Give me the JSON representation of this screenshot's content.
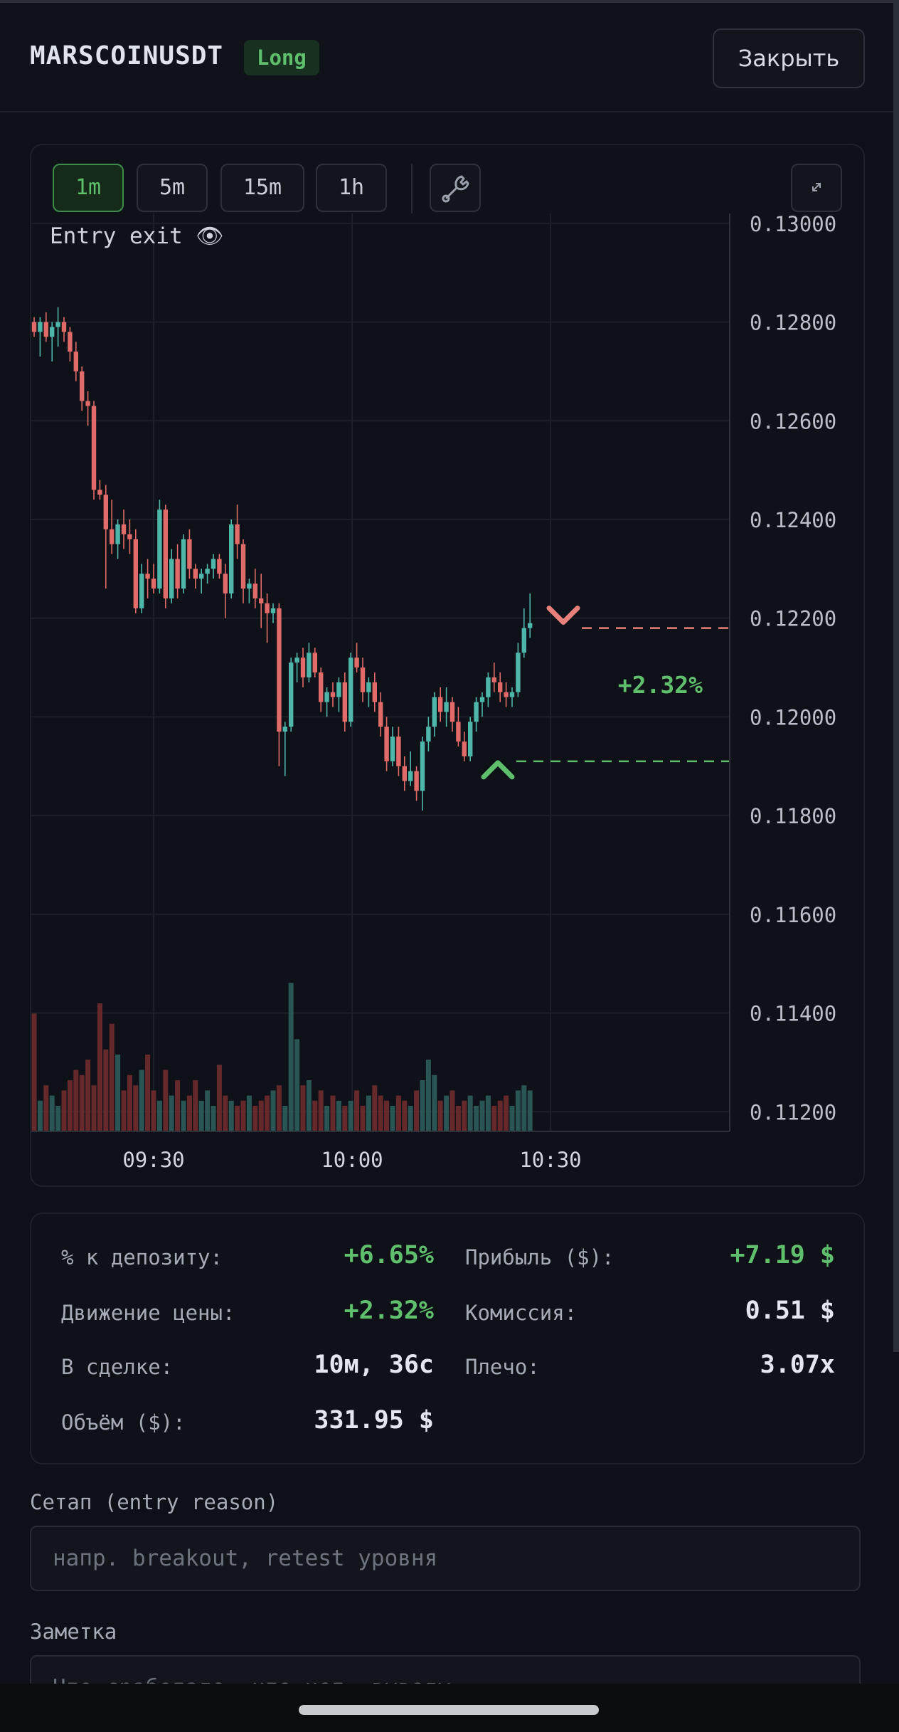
{
  "header": {
    "symbol": "MARSCOINUSDT",
    "side": "Long",
    "close_label": "Закрыть"
  },
  "chart": {
    "timeframes": [
      "1m",
      "5m",
      "15m",
      "1h"
    ],
    "active_timeframe": "1m",
    "legend_text": "Entry exit 👁",
    "tool_icon": "wrench-icon",
    "expand_icon": "expand-icon"
  },
  "chart_data": {
    "type": "candlestick",
    "ylim": [
      0.1116,
      0.1302
    ],
    "y_ticks": [
      "0.13000",
      "0.12800",
      "0.12600",
      "0.12400",
      "0.12200",
      "0.12000",
      "0.11800",
      "0.11600",
      "0.11400",
      "0.11200"
    ],
    "x_ticks": [
      "09:30",
      "10:00",
      "10:30"
    ],
    "entry_price": 0.1191,
    "exit_price": 0.1218,
    "pnl_label": "+2.32%",
    "colors": {
      "up": "#4fb6aa",
      "down": "#e06b68",
      "entry": "#5fbf6d",
      "exit": "#e8807c"
    },
    "candles": [
      {
        "o": 0.128,
        "h": 0.1281,
        "l": 0.1277,
        "c": 0.1278
      },
      {
        "o": 0.1278,
        "h": 0.1281,
        "l": 0.1273,
        "c": 0.128
      },
      {
        "o": 0.128,
        "h": 0.1282,
        "l": 0.1276,
        "c": 0.1277
      },
      {
        "o": 0.1277,
        "h": 0.128,
        "l": 0.1272,
        "c": 0.1279
      },
      {
        "o": 0.1279,
        "h": 0.1283,
        "l": 0.1275,
        "c": 0.128
      },
      {
        "o": 0.128,
        "h": 0.1281,
        "l": 0.1276,
        "c": 0.1278
      },
      {
        "o": 0.1278,
        "h": 0.1279,
        "l": 0.1272,
        "c": 0.1274
      },
      {
        "o": 0.1274,
        "h": 0.1276,
        "l": 0.1268,
        "c": 0.127
      },
      {
        "o": 0.127,
        "h": 0.1271,
        "l": 0.1262,
        "c": 0.1264
      },
      {
        "o": 0.1264,
        "h": 0.1266,
        "l": 0.1259,
        "c": 0.1263
      },
      {
        "o": 0.1263,
        "h": 0.1264,
        "l": 0.1244,
        "c": 0.1246
      },
      {
        "o": 0.1246,
        "h": 0.1248,
        "l": 0.1244,
        "c": 0.1245
      },
      {
        "o": 0.1245,
        "h": 0.1247,
        "l": 0.1226,
        "c": 0.1238
      },
      {
        "o": 0.1238,
        "h": 0.1244,
        "l": 0.1233,
        "c": 0.1235
      },
      {
        "o": 0.1235,
        "h": 0.124,
        "l": 0.1232,
        "c": 0.1239
      },
      {
        "o": 0.1239,
        "h": 0.1242,
        "l": 0.1234,
        "c": 0.1237
      },
      {
        "o": 0.1237,
        "h": 0.124,
        "l": 0.1233,
        "c": 0.1236
      },
      {
        "o": 0.1236,
        "h": 0.1238,
        "l": 0.1221,
        "c": 0.1222
      },
      {
        "o": 0.1222,
        "h": 0.1231,
        "l": 0.1221,
        "c": 0.1229
      },
      {
        "o": 0.1229,
        "h": 0.1232,
        "l": 0.1224,
        "c": 0.1228
      },
      {
        "o": 0.1228,
        "h": 0.1231,
        "l": 0.1225,
        "c": 0.1226
      },
      {
        "o": 0.1226,
        "h": 0.1244,
        "l": 0.1225,
        "c": 0.1242
      },
      {
        "o": 0.1242,
        "h": 0.1243,
        "l": 0.1222,
        "c": 0.1224
      },
      {
        "o": 0.1224,
        "h": 0.1234,
        "l": 0.1223,
        "c": 0.1232
      },
      {
        "o": 0.1232,
        "h": 0.1235,
        "l": 0.1224,
        "c": 0.1226
      },
      {
        "o": 0.1226,
        "h": 0.1237,
        "l": 0.1225,
        "c": 0.1236
      },
      {
        "o": 0.1236,
        "h": 0.1238,
        "l": 0.1228,
        "c": 0.123
      },
      {
        "o": 0.123,
        "h": 0.1231,
        "l": 0.1226,
        "c": 0.1228
      },
      {
        "o": 0.1228,
        "h": 0.123,
        "l": 0.1225,
        "c": 0.1229
      },
      {
        "o": 0.1229,
        "h": 0.1231,
        "l": 0.1227,
        "c": 0.123
      },
      {
        "o": 0.123,
        "h": 0.1233,
        "l": 0.1228,
        "c": 0.1232
      },
      {
        "o": 0.1232,
        "h": 0.1233,
        "l": 0.1228,
        "c": 0.1229
      },
      {
        "o": 0.1229,
        "h": 0.1231,
        "l": 0.122,
        "c": 0.1225
      },
      {
        "o": 0.1225,
        "h": 0.124,
        "l": 0.1224,
        "c": 0.1239
      },
      {
        "o": 0.1239,
        "h": 0.1243,
        "l": 0.1232,
        "c": 0.1235
      },
      {
        "o": 0.1235,
        "h": 0.1236,
        "l": 0.1223,
        "c": 0.1226
      },
      {
        "o": 0.1226,
        "h": 0.1228,
        "l": 0.1223,
        "c": 0.1227
      },
      {
        "o": 0.1227,
        "h": 0.123,
        "l": 0.1222,
        "c": 0.1224
      },
      {
        "o": 0.1224,
        "h": 0.1229,
        "l": 0.1218,
        "c": 0.1223
      },
      {
        "o": 0.1223,
        "h": 0.1225,
        "l": 0.1215,
        "c": 0.1221
      },
      {
        "o": 0.1221,
        "h": 0.1223,
        "l": 0.1219,
        "c": 0.1222
      },
      {
        "o": 0.1222,
        "h": 0.1223,
        "l": 0.119,
        "c": 0.1197
      },
      {
        "o": 0.1197,
        "h": 0.1199,
        "l": 0.1188,
        "c": 0.1198
      },
      {
        "o": 0.1198,
        "h": 0.1212,
        "l": 0.1197,
        "c": 0.1211
      },
      {
        "o": 0.1211,
        "h": 0.1213,
        "l": 0.1207,
        "c": 0.1212
      },
      {
        "o": 0.1212,
        "h": 0.1214,
        "l": 0.1206,
        "c": 0.1208
      },
      {
        "o": 0.1208,
        "h": 0.1215,
        "l": 0.1207,
        "c": 0.1213
      },
      {
        "o": 0.1213,
        "h": 0.1214,
        "l": 0.1208,
        "c": 0.1209
      },
      {
        "o": 0.1209,
        "h": 0.121,
        "l": 0.1201,
        "c": 0.1203
      },
      {
        "o": 0.1203,
        "h": 0.1206,
        "l": 0.12,
        "c": 0.1205
      },
      {
        "o": 0.1205,
        "h": 0.1207,
        "l": 0.1202,
        "c": 0.1204
      },
      {
        "o": 0.1204,
        "h": 0.1208,
        "l": 0.1201,
        "c": 0.1207
      },
      {
        "o": 0.1207,
        "h": 0.1209,
        "l": 0.1197,
        "c": 0.1199
      },
      {
        "o": 0.1199,
        "h": 0.1213,
        "l": 0.1198,
        "c": 0.1212
      },
      {
        "o": 0.1212,
        "h": 0.1215,
        "l": 0.1209,
        "c": 0.121
      },
      {
        "o": 0.121,
        "h": 0.1212,
        "l": 0.1203,
        "c": 0.1205
      },
      {
        "o": 0.1205,
        "h": 0.1208,
        "l": 0.1202,
        "c": 0.1207
      },
      {
        "o": 0.1207,
        "h": 0.1209,
        "l": 0.1201,
        "c": 0.1203
      },
      {
        "o": 0.1203,
        "h": 0.1205,
        "l": 0.1196,
        "c": 0.1198
      },
      {
        "o": 0.1198,
        "h": 0.12,
        "l": 0.1189,
        "c": 0.1191
      },
      {
        "o": 0.1191,
        "h": 0.1198,
        "l": 0.119,
        "c": 0.1196
      },
      {
        "o": 0.1196,
        "h": 0.1198,
        "l": 0.1188,
        "c": 0.119
      },
      {
        "o": 0.119,
        "h": 0.1192,
        "l": 0.1185,
        "c": 0.1187
      },
      {
        "o": 0.1187,
        "h": 0.1193,
        "l": 0.1186,
        "c": 0.1189
      },
      {
        "o": 0.1189,
        "h": 0.119,
        "l": 0.1183,
        "c": 0.1185
      },
      {
        "o": 0.1185,
        "h": 0.1196,
        "l": 0.1181,
        "c": 0.1195
      },
      {
        "o": 0.1195,
        "h": 0.12,
        "l": 0.1193,
        "c": 0.1198
      },
      {
        "o": 0.1198,
        "h": 0.1205,
        "l": 0.1196,
        "c": 0.1204
      },
      {
        "o": 0.1204,
        "h": 0.1206,
        "l": 0.1199,
        "c": 0.1201
      },
      {
        "o": 0.1201,
        "h": 0.1206,
        "l": 0.1198,
        "c": 0.1203
      },
      {
        "o": 0.1203,
        "h": 0.1204,
        "l": 0.1197,
        "c": 0.1199
      },
      {
        "o": 0.1199,
        "h": 0.1202,
        "l": 0.1194,
        "c": 0.1195
      },
      {
        "o": 0.1195,
        "h": 0.1197,
        "l": 0.1191,
        "c": 0.1192
      },
      {
        "o": 0.1192,
        "h": 0.12,
        "l": 0.1191,
        "c": 0.1199
      },
      {
        "o": 0.1199,
        "h": 0.1204,
        "l": 0.1197,
        "c": 0.1203
      },
      {
        "o": 0.1203,
        "h": 0.1205,
        "l": 0.12,
        "c": 0.1204
      },
      {
        "o": 0.1204,
        "h": 0.1209,
        "l": 0.1202,
        "c": 0.1208
      },
      {
        "o": 0.1208,
        "h": 0.1211,
        "l": 0.1205,
        "c": 0.1207
      },
      {
        "o": 0.1207,
        "h": 0.1209,
        "l": 0.1203,
        "c": 0.1205
      },
      {
        "o": 0.1205,
        "h": 0.1207,
        "l": 0.1202,
        "c": 0.1204
      },
      {
        "o": 0.1204,
        "h": 0.1206,
        "l": 0.1202,
        "c": 0.1205
      },
      {
        "o": 0.1205,
        "h": 0.1215,
        "l": 0.1204,
        "c": 0.1213
      },
      {
        "o": 0.1213,
        "h": 0.1222,
        "l": 0.1212,
        "c": 0.1218
      },
      {
        "o": 0.1218,
        "h": 0.1225,
        "l": 0.1216,
        "c": 0.1219
      }
    ],
    "volumes": [
      46,
      12,
      18,
      14,
      10,
      16,
      20,
      24,
      22,
      28,
      18,
      50,
      32,
      42,
      30,
      16,
      22,
      18,
      24,
      30,
      16,
      12,
      24,
      14,
      20,
      12,
      14,
      20,
      12,
      16,
      10,
      26,
      14,
      12,
      10,
      12,
      14,
      10,
      12,
      14,
      16,
      18,
      10,
      58,
      36,
      18,
      20,
      12,
      16,
      10,
      14,
      12,
      10,
      12,
      16,
      10,
      14,
      18,
      14,
      12,
      10,
      14,
      12,
      10,
      16,
      20,
      28,
      22,
      12,
      14,
      16,
      10,
      12,
      14,
      10,
      12,
      14,
      10,
      12,
      14,
      10,
      16,
      18,
      16
    ]
  },
  "stats": [
    {
      "label": "% к депозиту:",
      "value": "+6.65%",
      "tone": "pos"
    },
    {
      "label": "Прибыль ($):",
      "value": "+7.19 $",
      "tone": "pos"
    },
    {
      "label": "Движение цены:",
      "value": "+2.32%",
      "tone": "pos"
    },
    {
      "label": "Комиссия:",
      "value": "0.51 $",
      "tone": "neutral"
    },
    {
      "label": "В сделке:",
      "value": "10м, 36с",
      "tone": "neutral"
    },
    {
      "label": "Плечо:",
      "value": "3.07x",
      "tone": "neutral"
    },
    {
      "label": "Объём ($):",
      "value": "331.95 $",
      "tone": "neutral"
    }
  ],
  "form": {
    "setup_label": "Сетап (entry reason)",
    "setup_placeholder": "напр. breakout, retest уровня",
    "note_label": "Заметка",
    "note_placeholder": "Что сработало, что нет, выводы"
  }
}
